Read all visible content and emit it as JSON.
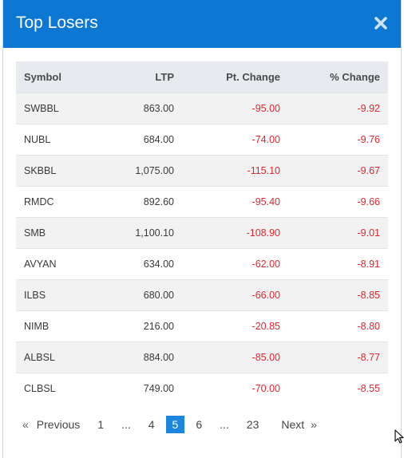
{
  "header": {
    "title": "Top Losers"
  },
  "table": {
    "columns": [
      "Symbol",
      "LTP",
      "Pt. Change",
      "% Change"
    ],
    "rows": [
      {
        "symbol": "SWBBL",
        "ltp": "863.00",
        "pt_change": "-95.00",
        "pct_change": "-9.92"
      },
      {
        "symbol": "NUBL",
        "ltp": "684.00",
        "pt_change": "-74.00",
        "pct_change": "-9.76"
      },
      {
        "symbol": "SKBBL",
        "ltp": "1,075.00",
        "pt_change": "-115.10",
        "pct_change": "-9.67"
      },
      {
        "symbol": "RMDC",
        "ltp": "892.60",
        "pt_change": "-95.40",
        "pct_change": "-9.66"
      },
      {
        "symbol": "SMB",
        "ltp": "1,100.10",
        "pt_change": "-108.90",
        "pct_change": "-9.01"
      },
      {
        "symbol": "AVYAN",
        "ltp": "634.00",
        "pt_change": "-62.00",
        "pct_change": "-8.91"
      },
      {
        "symbol": "ILBS",
        "ltp": "680.00",
        "pt_change": "-66.00",
        "pct_change": "-8.85"
      },
      {
        "symbol": "NIMB",
        "ltp": "216.00",
        "pt_change": "-20.85",
        "pct_change": "-8.80"
      },
      {
        "symbol": "ALBSL",
        "ltp": "884.00",
        "pt_change": "-85.00",
        "pct_change": "-8.77"
      },
      {
        "symbol": "CLBSL",
        "ltp": "749.00",
        "pt_change": "-70.00",
        "pct_change": "-8.55"
      }
    ]
  },
  "pagination": {
    "prev_arrow": "«",
    "prev_label": "Previous",
    "pages": [
      "1",
      "...",
      "4",
      "5",
      "6",
      "...",
      "23"
    ],
    "active_page": "5",
    "next_label": "Next",
    "next_arrow": "»"
  },
  "colors": {
    "header_bg": "#0d78d3",
    "negative": "#e0262f",
    "active_page": "#1c86df"
  },
  "icons": {
    "close": "close-icon",
    "cursor": "mouse-pointer-icon"
  }
}
